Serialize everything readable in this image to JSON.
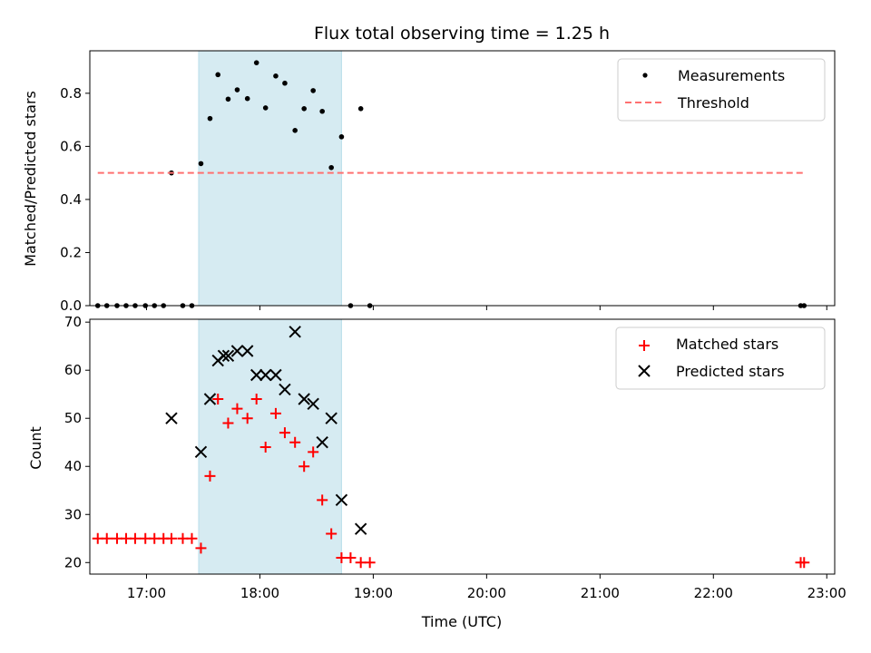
{
  "chart_data": [
    {
      "type": "scatter",
      "title": "Flux total observing time = 1.25 h",
      "xlabel": "",
      "ylabel": "Matched/Predicted stars",
      "xlim": [
        16.5,
        23.07
      ],
      "ylim": [
        0,
        0.96
      ],
      "yticks": [
        0.0,
        0.2,
        0.4,
        0.6,
        0.8
      ],
      "ytick_labels": [
        "0.0",
        "0.2",
        "0.4",
        "0.6",
        "0.8"
      ],
      "shaded_span": [
        17.46,
        18.72
      ],
      "legend": {
        "placement": "top-right",
        "entries": [
          "Measurements",
          "Threshold"
        ]
      },
      "series": [
        {
          "name": "Measurements",
          "color": "#000000",
          "marker": "dot",
          "x": [
            16.57,
            16.65,
            16.74,
            16.82,
            16.9,
            16.99,
            17.07,
            17.15,
            17.22,
            17.32,
            17.4,
            17.48,
            17.56,
            17.63,
            17.72,
            17.8,
            17.89,
            17.97,
            18.05,
            18.14,
            18.22,
            18.31,
            18.39,
            18.47,
            18.55,
            18.63,
            18.72,
            18.8,
            18.89,
            18.97,
            22.77,
            22.8
          ],
          "y": [
            0,
            0,
            0,
            0,
            0,
            0,
            0,
            0,
            0.5,
            0,
            0,
            0.535,
            0.705,
            0.87,
            0.778,
            0.813,
            0.78,
            0.915,
            0.745,
            0.865,
            0.838,
            0.66,
            0.742,
            0.81,
            0.732,
            0.52,
            0.636,
            0,
            0.742,
            0,
            0,
            0
          ]
        },
        {
          "name": "Threshold",
          "color": "#ff7070",
          "style": "dashed",
          "x": [
            16.57,
            22.8
          ],
          "y": [
            0.5,
            0.5
          ]
        }
      ]
    },
    {
      "type": "scatter",
      "title": "",
      "xlabel": "Time (UTC)",
      "ylabel": "Count",
      "xlim": [
        16.5,
        23.07
      ],
      "ylim": [
        17.6,
        70.6
      ],
      "xticks": [
        17,
        18,
        19,
        20,
        21,
        22,
        23
      ],
      "xtick_labels": [
        "17:00",
        "18:00",
        "19:00",
        "20:00",
        "21:00",
        "22:00",
        "23:00"
      ],
      "yticks": [
        20,
        30,
        40,
        50,
        60,
        70
      ],
      "ytick_labels": [
        "20",
        "30",
        "40",
        "50",
        "60",
        "70"
      ],
      "shaded_span": [
        17.46,
        18.72
      ],
      "legend": {
        "placement": "top-right",
        "entries": [
          "Matched stars",
          "Predicted stars"
        ]
      },
      "series": [
        {
          "name": "Matched stars",
          "color": "#ff0000",
          "marker": "plus",
          "x": [
            16.57,
            16.65,
            16.74,
            16.82,
            16.9,
            16.99,
            17.07,
            17.15,
            17.22,
            17.32,
            17.4,
            17.48,
            17.56,
            17.63,
            17.72,
            17.8,
            17.89,
            17.97,
            18.05,
            18.14,
            18.22,
            18.31,
            18.39,
            18.47,
            18.55,
            18.63,
            18.72,
            18.8,
            18.89,
            18.97,
            22.77,
            22.8
          ],
          "y": [
            25,
            25,
            25,
            25,
            25,
            25,
            25,
            25,
            25,
            25,
            25,
            23,
            38,
            54,
            49,
            52,
            50,
            54,
            44,
            51,
            47,
            45,
            40,
            43,
            33,
            26,
            21,
            21,
            20,
            20,
            20,
            20
          ]
        },
        {
          "name": "Predicted stars",
          "color": "#000000",
          "marker": "x",
          "x": [
            17.22,
            17.48,
            17.56,
            17.63,
            17.68,
            17.72,
            17.8,
            17.89,
            17.97,
            18.05,
            18.14,
            18.22,
            18.31,
            18.39,
            18.47,
            18.55,
            18.63,
            18.72,
            18.89
          ],
          "y": [
            50,
            43,
            54,
            62,
            63,
            63,
            64,
            64,
            59,
            59,
            59,
            56,
            68,
            54,
            53,
            45,
            50,
            33,
            27
          ]
        }
      ]
    }
  ]
}
